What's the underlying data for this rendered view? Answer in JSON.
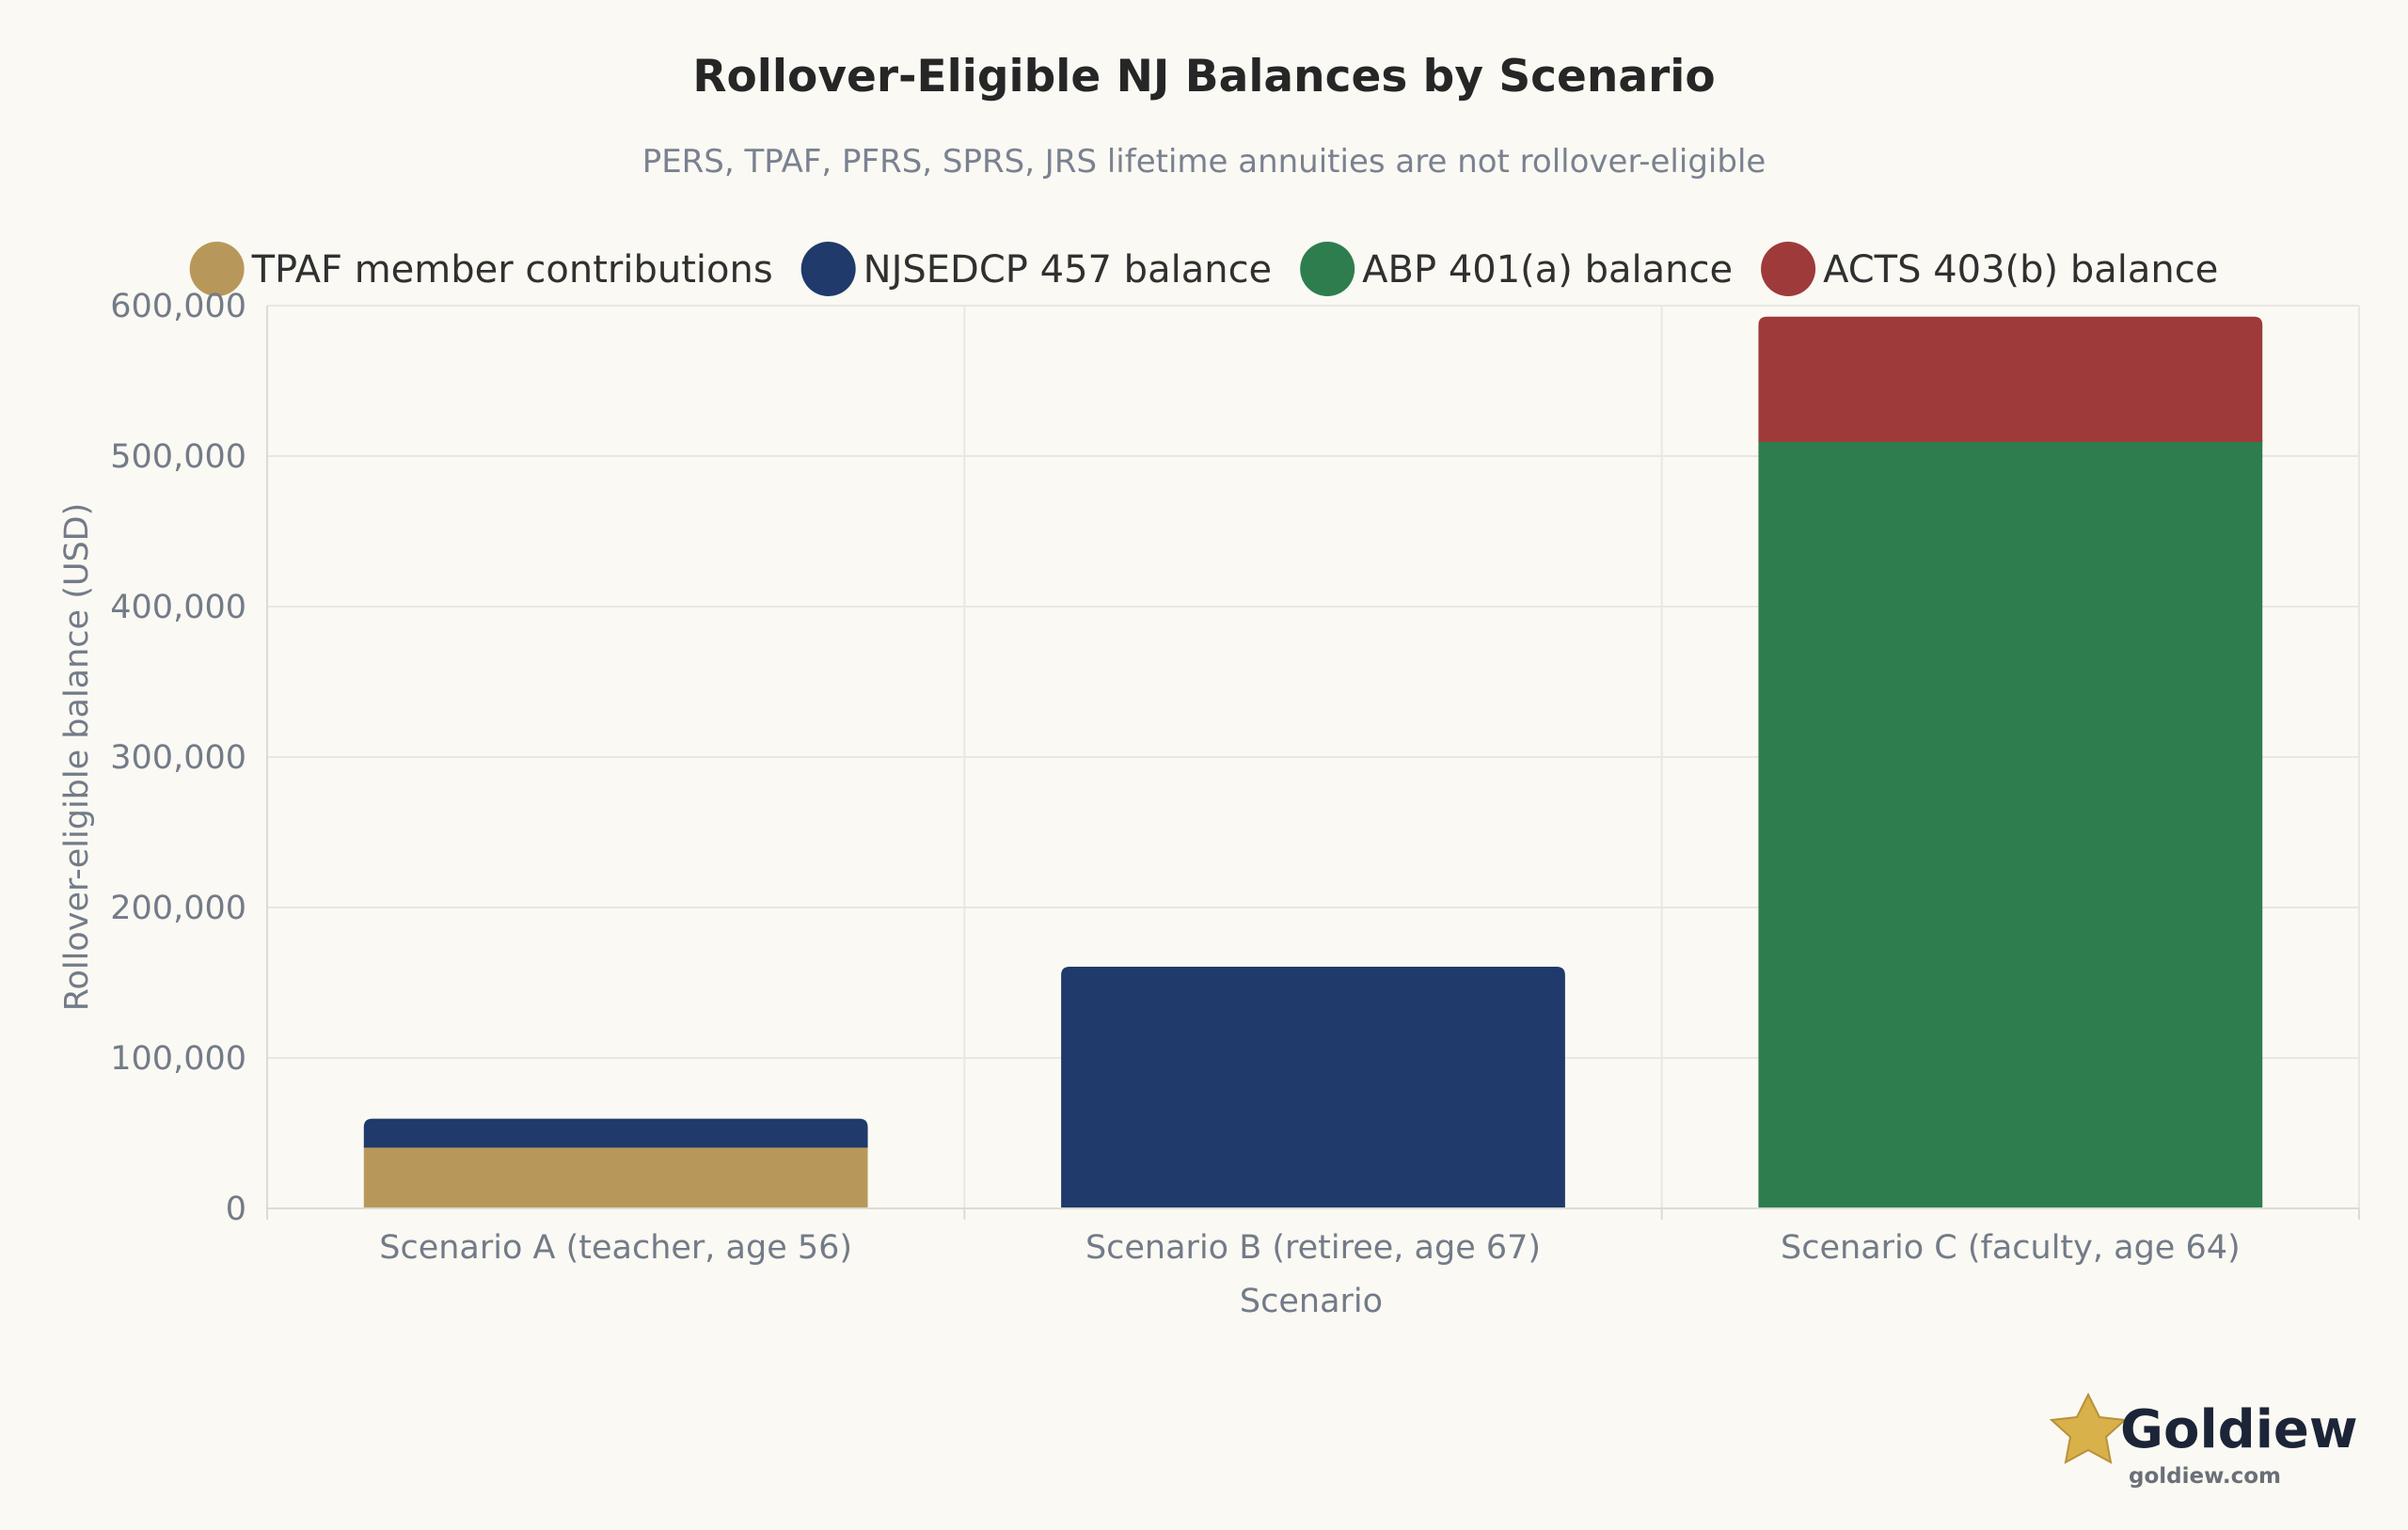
{
  "chart_data": {
    "type": "bar",
    "stacked": true,
    "title": "Rollover-Eligible NJ Balances by Scenario",
    "subtitle": "PERS, TPAF, PFRS, SPRS, JRS lifetime annuities are not rollover-eligible",
    "xlabel": "Scenario",
    "ylabel": "Rollover-eligible balance (USD)",
    "ylim": [
      0,
      600000
    ],
    "yticks": [
      0,
      100000,
      200000,
      300000,
      400000,
      500000,
      600000
    ],
    "ytick_labels": [
      "0",
      "100,000",
      "200,000",
      "300,000",
      "400,000",
      "500,000",
      "600,000"
    ],
    "grid": true,
    "legend_position": "top",
    "categories": [
      "Scenario A (teacher, age 56)",
      "Scenario B (retiree, age 67)",
      "Scenario C (faculty, age 64)"
    ],
    "series": [
      {
        "name": "TPAF member contributions",
        "color": "#B8985A",
        "values": [
          41000,
          0,
          0
        ]
      },
      {
        "name": "NJSEDCP 457 balance",
        "color": "#1F3A6B",
        "values": [
          18000,
          160000,
          0
        ]
      },
      {
        "name": "ABP 401(a) balance",
        "color": "#2E7D4F",
        "values": [
          0,
          0,
          510000
        ]
      },
      {
        "name": "ACTS 403(b) balance",
        "color": "#9E3A3A",
        "values": [
          0,
          0,
          82000
        ]
      }
    ]
  },
  "branding": {
    "logo_icon": "star-icon",
    "name": "Goldiew",
    "url": "goldiew.com"
  },
  "colors": {
    "background": "#FAF9F3",
    "grid": "#E8E7E0",
    "star": "#D9B14A"
  }
}
